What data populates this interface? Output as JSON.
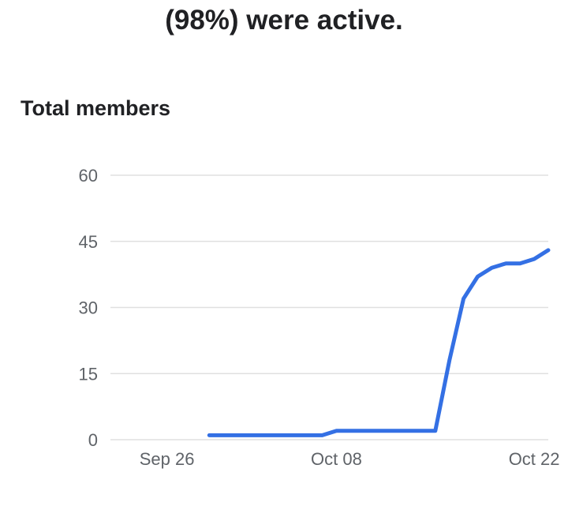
{
  "header": {
    "headline": "(98%) were active."
  },
  "section": {
    "title": "Total members"
  },
  "colors": {
    "line": "#3470e4",
    "grid": "#e0e0e0",
    "axis_text": "#5f6368",
    "heading_text": "#202124"
  },
  "chart_data": {
    "type": "line",
    "title": "Total members",
    "xlabel": "",
    "ylabel": "",
    "x_ticks": [
      {
        "date": "2023-09-26",
        "label": "Sep 26"
      },
      {
        "date": "2023-10-08",
        "label": "Oct 08"
      },
      {
        "date": "2023-10-22",
        "label": "Oct 22"
      }
    ],
    "y_ticks": [
      0,
      15,
      30,
      45,
      60
    ],
    "xlim": [
      "2023-09-22",
      "2023-10-23"
    ],
    "ylim": [
      0,
      60
    ],
    "grid": true,
    "legend": "none",
    "series": [
      {
        "points": [
          [
            "2023-09-29",
            1
          ],
          [
            "2023-09-30",
            1
          ],
          [
            "2023-10-01",
            1
          ],
          [
            "2023-10-02",
            1
          ],
          [
            "2023-10-03",
            1
          ],
          [
            "2023-10-04",
            1
          ],
          [
            "2023-10-05",
            1
          ],
          [
            "2023-10-06",
            1
          ],
          [
            "2023-10-07",
            1
          ],
          [
            "2023-10-08",
            2
          ],
          [
            "2023-10-09",
            2
          ],
          [
            "2023-10-10",
            2
          ],
          [
            "2023-10-11",
            2
          ],
          [
            "2023-10-12",
            2
          ],
          [
            "2023-10-13",
            2
          ],
          [
            "2023-10-14",
            2
          ],
          [
            "2023-10-15",
            2
          ],
          [
            "2023-10-16",
            18
          ],
          [
            "2023-10-17",
            32
          ],
          [
            "2023-10-18",
            37
          ],
          [
            "2023-10-19",
            39
          ],
          [
            "2023-10-20",
            40
          ],
          [
            "2023-10-21",
            40
          ],
          [
            "2023-10-22",
            41
          ],
          [
            "2023-10-23",
            43
          ]
        ]
      }
    ]
  }
}
